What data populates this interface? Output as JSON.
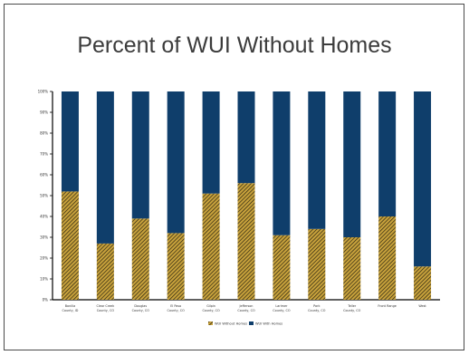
{
  "chart_data": {
    "type": "bar",
    "stacked": true,
    "title": "Percent of WUI Without Homes",
    "xlabel": "",
    "ylabel": "",
    "ylim": [
      0,
      100
    ],
    "yticks": [
      "0%",
      "10%",
      "20%",
      "30%",
      "40%",
      "50%",
      "60%",
      "70%",
      "80%",
      "90%",
      "100%"
    ],
    "categories": [
      "Bonilla County, ID",
      "Clear Creek County, CO",
      "Douglas County, CO",
      "El Paso County, CO",
      "Gilpin County, CO",
      "Jefferson County, CO",
      "Larimer County, CO",
      "Park County, CO",
      "Teller County, CO",
      "Front Range",
      "West"
    ],
    "series": [
      {
        "name": "WUI Without Homes",
        "color": "#c8a23c",
        "pattern": "hatched",
        "values": [
          52,
          27,
          39,
          32,
          51,
          56,
          31,
          34,
          30,
          40,
          16
        ]
      },
      {
        "name": "WUI With Homes",
        "color": "#0f3e6b",
        "values": [
          48,
          73,
          61,
          68,
          49,
          44,
          69,
          66,
          70,
          60,
          84
        ]
      }
    ],
    "legend_position": "bottom",
    "grid": false
  }
}
